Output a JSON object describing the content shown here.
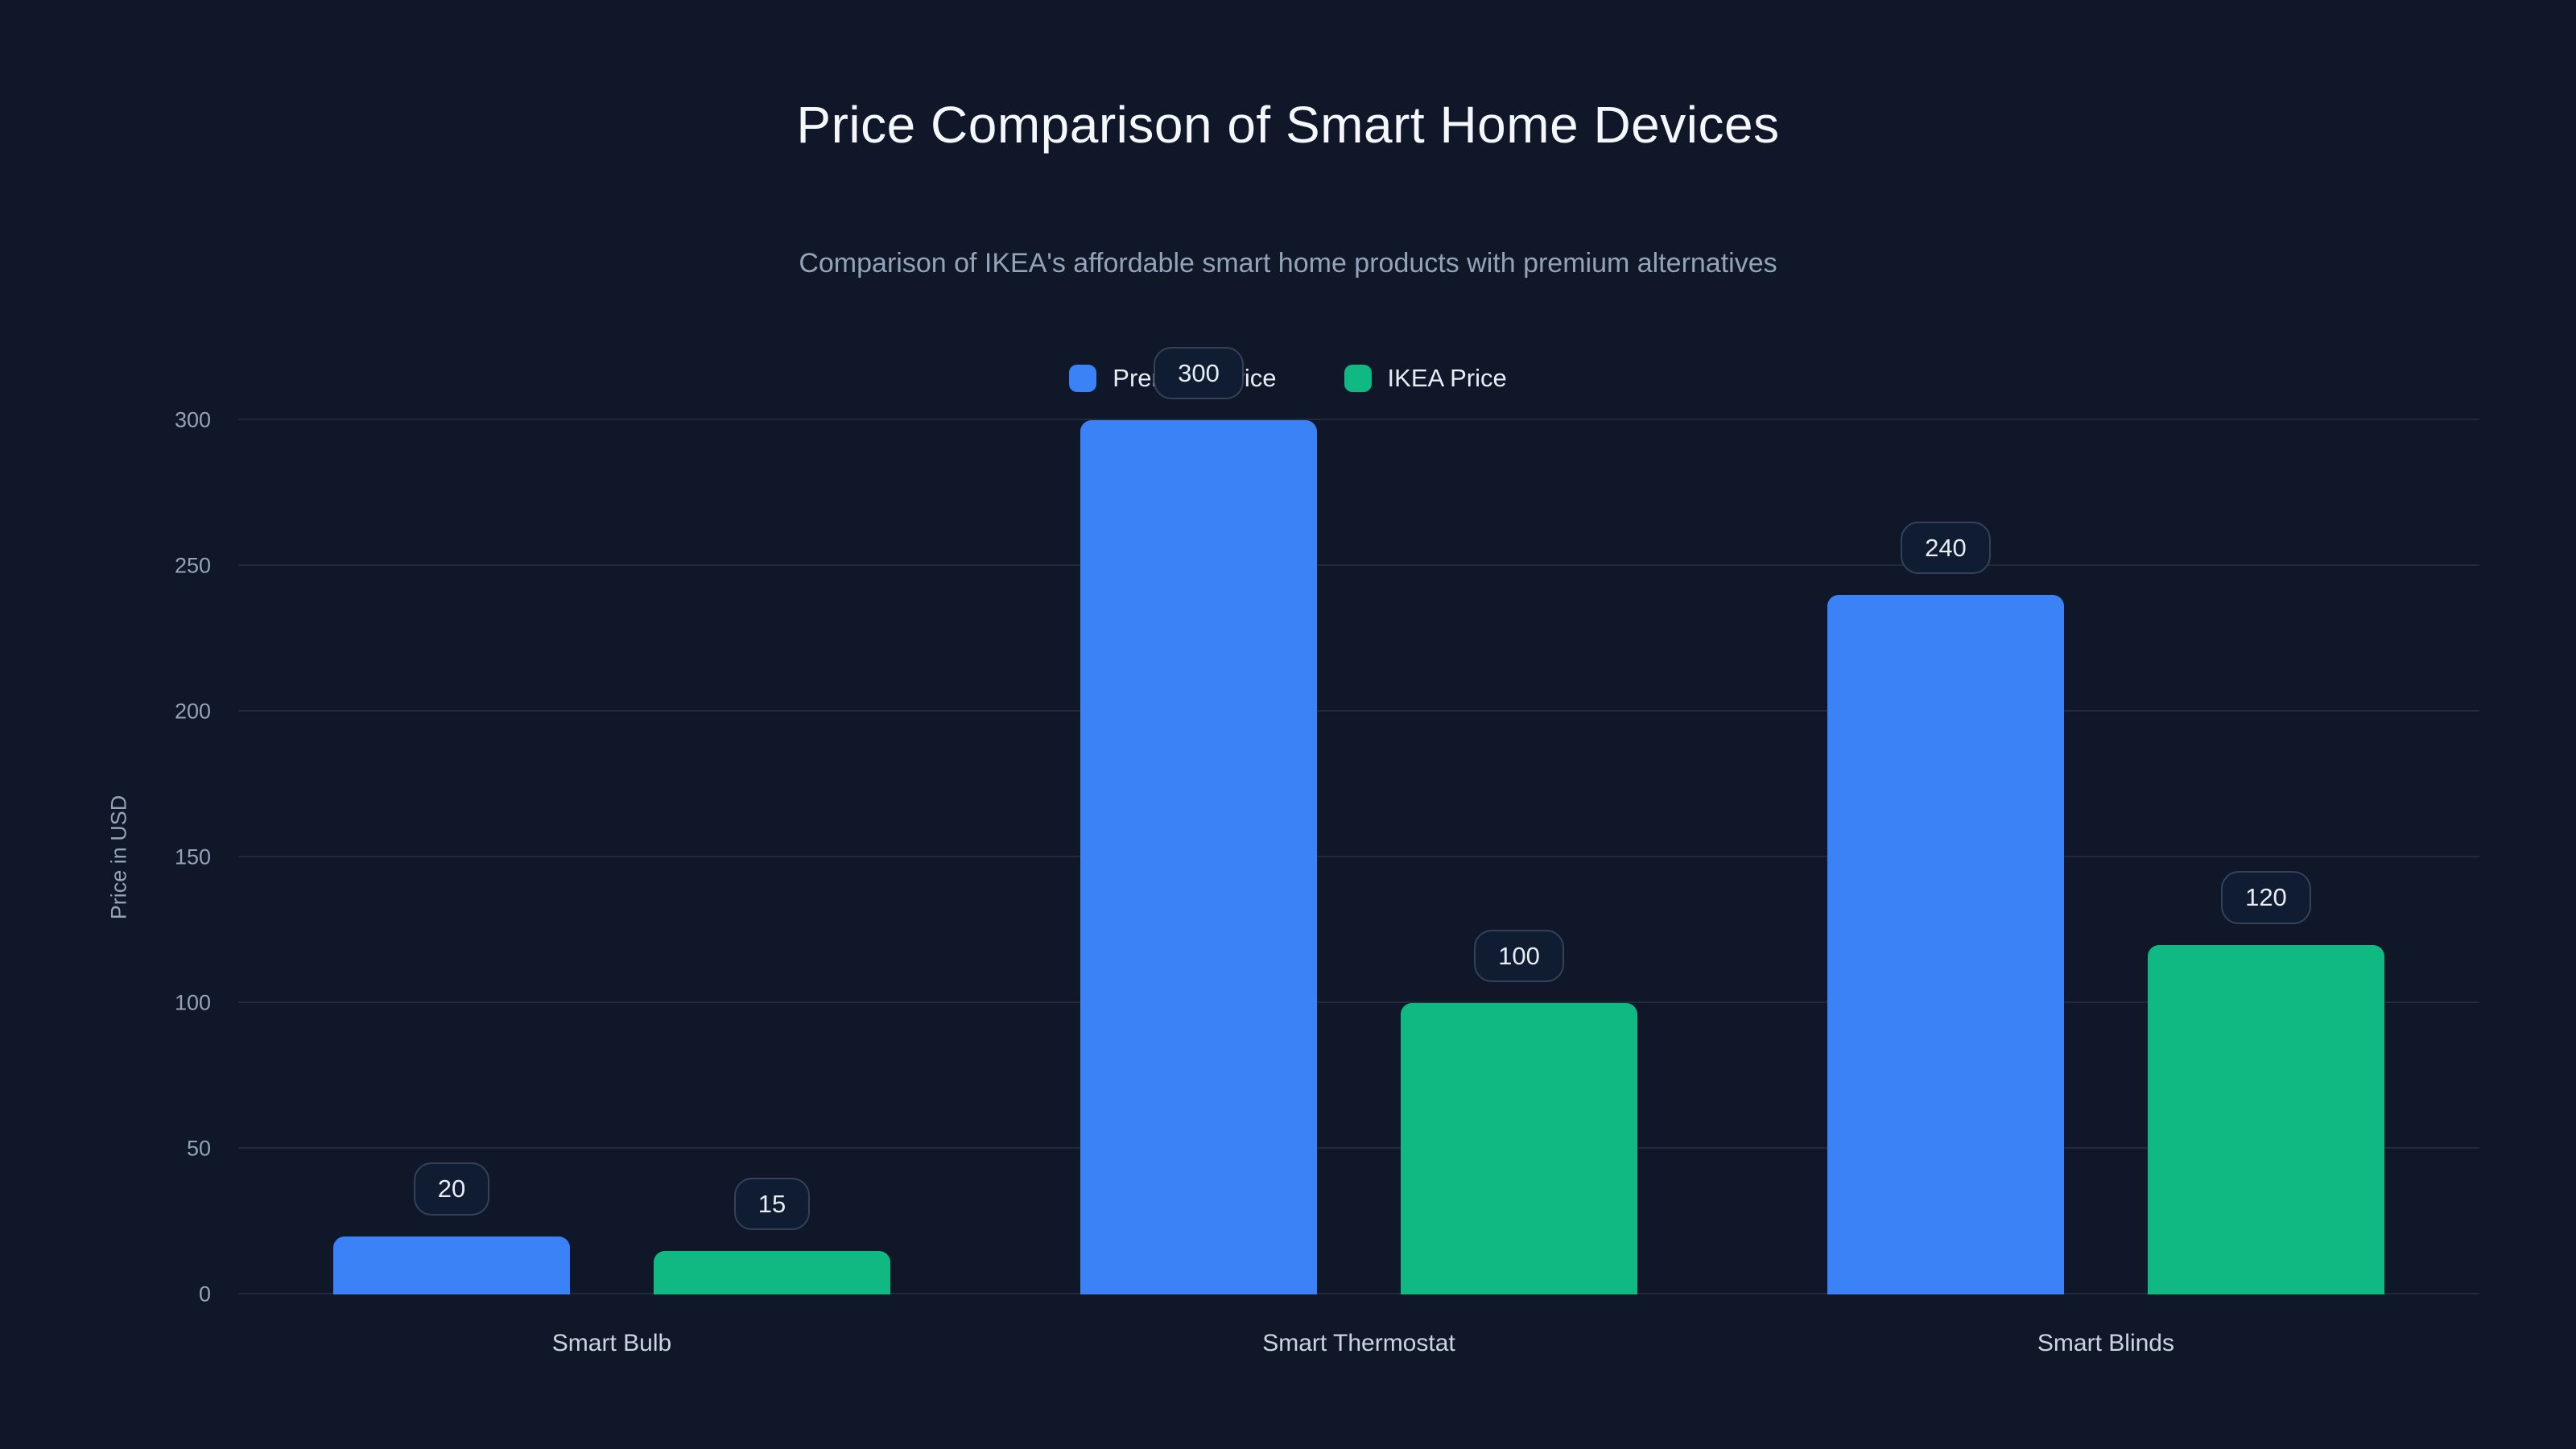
{
  "chart_data": {
    "type": "bar",
    "title": "Price Comparison of Smart Home Devices",
    "subtitle": "Comparison of IKEA's affordable smart home products with premium alternatives",
    "categories": [
      "Smart Bulb",
      "Smart Thermostat",
      "Smart Blinds"
    ],
    "series": [
      {
        "name": "Premium Price",
        "color": "#3b82f6",
        "values": [
          20,
          300,
          240
        ]
      },
      {
        "name": "IKEA Price",
        "color": "#10b981",
        "values": [
          15,
          100,
          120
        ]
      }
    ],
    "xlabel": "",
    "ylabel": "Price in USD",
    "ylim": [
      0,
      300
    ],
    "yticks": [
      0,
      50,
      100,
      150,
      200,
      250,
      300
    ],
    "grid": true,
    "legend_position": "top-center",
    "data_labels_visible": true,
    "colors": {
      "background": "#0f1729",
      "grid": "rgba(148,163,184,0.14)",
      "tick_text": "#94a3b8",
      "title_text": "#f4f7fb",
      "subtitle_text": "#94a3b8",
      "label_box_border": "#33415a",
      "label_box_background": "#101c31",
      "label_text": "#e8edf4"
    }
  }
}
